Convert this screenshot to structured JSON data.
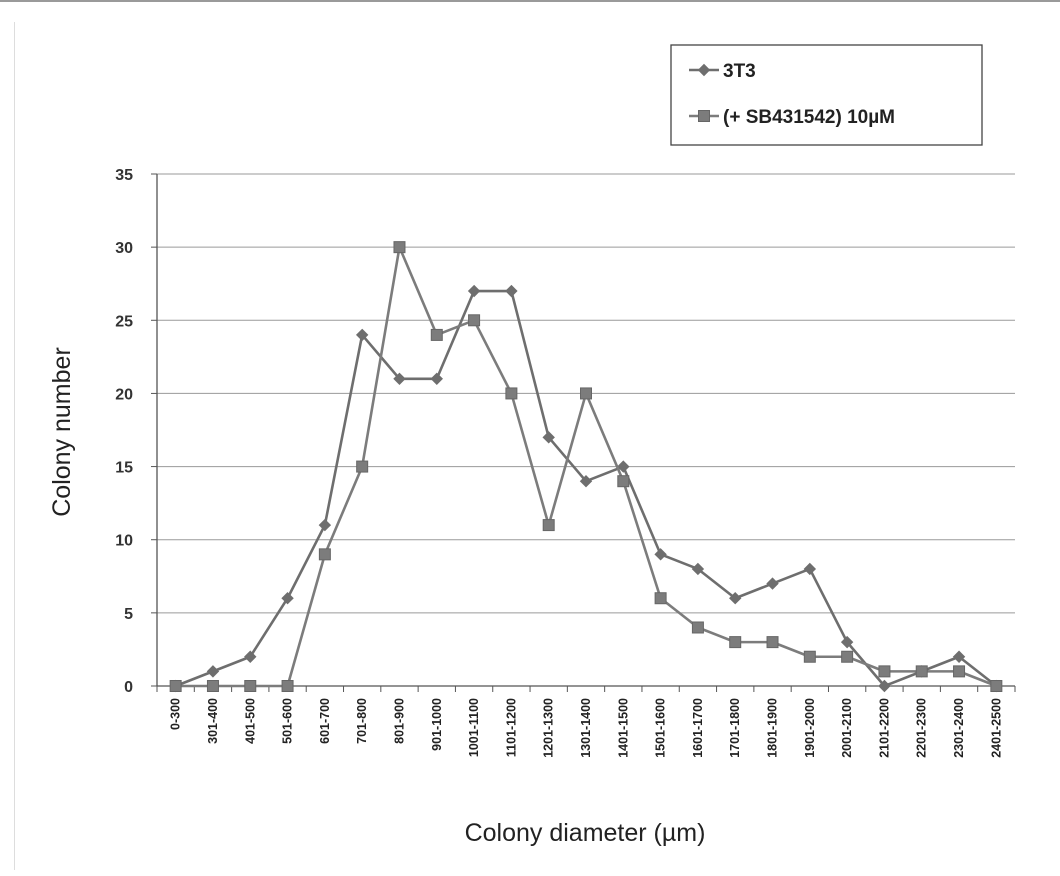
{
  "chart_data": {
    "type": "line",
    "title": "",
    "xlabel": "Colony diameter (µm)",
    "ylabel": "Colony number",
    "ylim": [
      0,
      35
    ],
    "yticks": [
      0,
      5,
      10,
      15,
      20,
      25,
      30,
      35
    ],
    "grid": "horizontal",
    "legend_position": "top-right",
    "categories": [
      "0-300",
      "301-400",
      "401-500",
      "501-600",
      "601-700",
      "701-800",
      "801-900",
      "901-1000",
      "1001-1100",
      "1101-1200",
      "1201-1300",
      "1301-1400",
      "1401-1500",
      "1501-1600",
      "1601-1700",
      "1701-1800",
      "1801-1900",
      "1901-2000",
      "2001-2100",
      "2101-2200",
      "2201-2300",
      "2301-2400",
      "2401-2500"
    ],
    "series": [
      {
        "name": "3T3",
        "marker": "diamond",
        "color": "#6e6e6e",
        "values": [
          0,
          1,
          2,
          6,
          11,
          24,
          21,
          21,
          27,
          27,
          17,
          14,
          15,
          9,
          8,
          6,
          7,
          8,
          3,
          0,
          1,
          2,
          0
        ]
      },
      {
        "name": "(+ SB431542) 10µM",
        "marker": "square",
        "color": "#7c7c7c",
        "values": [
          0,
          0,
          0,
          0,
          9,
          15,
          30,
          24,
          25,
          20,
          11,
          20,
          14,
          6,
          4,
          3,
          3,
          2,
          2,
          1,
          1,
          1,
          0
        ]
      }
    ]
  }
}
